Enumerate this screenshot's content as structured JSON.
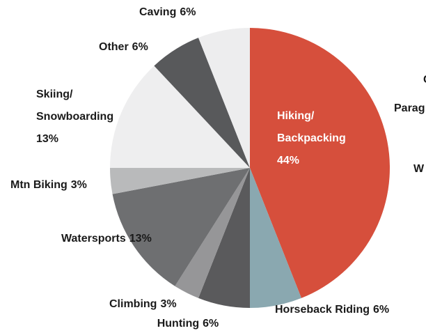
{
  "chart_data": {
    "type": "pie",
    "categories": [
      "Hiking/Backpacking",
      "Horseback Riding",
      "Hunting",
      "Climbing",
      "Watersports",
      "Mtn Biking",
      "Skiing/Snowboarding",
      "Other",
      "Caving"
    ],
    "values": [
      44,
      6,
      6,
      3,
      13,
      3,
      13,
      6,
      6
    ],
    "value_labels": [
      "44%",
      "6%",
      "6%",
      "3%",
      "13%",
      "3%",
      "13%",
      "6%",
      "6%"
    ],
    "colors": [
      "#d64f3c",
      "#8aa8b0",
      "#5a5a5c",
      "#969698",
      "#6e6f71",
      "#b9babb",
      "#eeeeef",
      "#58595b",
      "#ededee"
    ],
    "annotations": [
      "C",
      "Parag",
      "W"
    ]
  }
}
